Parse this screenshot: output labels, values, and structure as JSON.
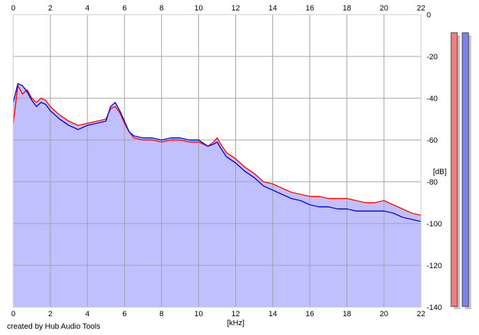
{
  "credit_text": "created by Hub Audio Tools",
  "chart_data": {
    "type": "area",
    "title": "",
    "xlabel": "[kHz]",
    "ylabel": "[dB]",
    "xlim": [
      0,
      22
    ],
    "ylim": [
      -140,
      0
    ],
    "x_ticks": [
      0,
      2,
      4,
      6,
      8,
      10,
      12,
      14,
      16,
      18,
      20,
      22
    ],
    "y_ticks_right": [
      0,
      -20,
      -40,
      -60,
      -80,
      -100,
      -120,
      -140
    ],
    "grid": true,
    "legend": "none",
    "colors": {
      "background": "#ffffff",
      "area_fill": "#c0c0ff",
      "grid": "#a0a0a0",
      "frame": "#c8c8c8"
    },
    "series": [
      {
        "color": "#ff0000",
        "x": [
          0,
          0.25,
          0.5,
          0.75,
          1,
          1.25,
          1.5,
          1.75,
          2,
          2.5,
          3,
          3.5,
          4,
          4.5,
          5,
          5.25,
          5.5,
          5.75,
          6,
          6.25,
          6.5,
          7,
          7.5,
          8,
          8.5,
          9,
          9.5,
          10,
          10.5,
          10.8,
          11,
          11.2,
          11.5,
          12,
          12.5,
          13,
          13.5,
          14,
          14.5,
          15,
          15.5,
          16,
          16.5,
          17,
          17.5,
          18,
          18.5,
          19,
          19.5,
          20,
          20.5,
          21,
          21.5,
          22
        ],
        "values": [
          -52,
          -34,
          -38,
          -36,
          -40,
          -42,
          -40,
          -41,
          -44,
          -48,
          -51,
          -53,
          -52,
          -51,
          -50,
          -45,
          -44,
          -47,
          -52,
          -56,
          -59,
          -60,
          -60,
          -61,
          -60,
          -60,
          -61,
          -61,
          -63,
          -61,
          -59,
          -62,
          -66,
          -69,
          -73,
          -76,
          -80,
          -81,
          -83,
          -85,
          -86,
          -87,
          -87,
          -88,
          -88,
          -88,
          -89,
          -90,
          -90,
          -89,
          -91,
          -93,
          -95,
          -96
        ]
      },
      {
        "color": "#0000cc",
        "x": [
          0,
          0.25,
          0.5,
          0.75,
          1,
          1.25,
          1.5,
          1.75,
          2,
          2.5,
          3,
          3.5,
          4,
          4.5,
          5,
          5.25,
          5.5,
          5.75,
          6,
          6.25,
          6.5,
          7,
          7.5,
          8,
          8.5,
          9,
          9.5,
          10,
          10.5,
          10.8,
          11,
          11.2,
          11.5,
          12,
          12.5,
          13,
          13.5,
          14,
          14.5,
          15,
          15.5,
          16,
          16.5,
          17,
          17.5,
          18,
          18.5,
          19,
          19.5,
          20,
          20.5,
          21,
          21.5,
          22
        ],
        "values": [
          -42,
          -33,
          -34,
          -37,
          -41,
          -44,
          -42,
          -43,
          -46,
          -50,
          -53,
          -55,
          -53,
          -52,
          -51,
          -44,
          -42,
          -46,
          -51,
          -56,
          -58,
          -59,
          -59,
          -60,
          -59,
          -59,
          -60,
          -60,
          -63,
          -62,
          -61,
          -64,
          -68,
          -71,
          -75,
          -78,
          -82,
          -84,
          -86,
          -88,
          -89,
          -91,
          -92,
          -92,
          -93,
          -93,
          -94,
          -94,
          -94,
          -94,
          -95,
          -97,
          -98,
          -99
        ]
      }
    ],
    "level_bars": [
      {
        "color": "#f08080",
        "shadow": "#c8c8c8",
        "level": 1.0
      },
      {
        "color": "#8080f0",
        "shadow": "#c8c8c8",
        "level": 1.0
      }
    ]
  }
}
